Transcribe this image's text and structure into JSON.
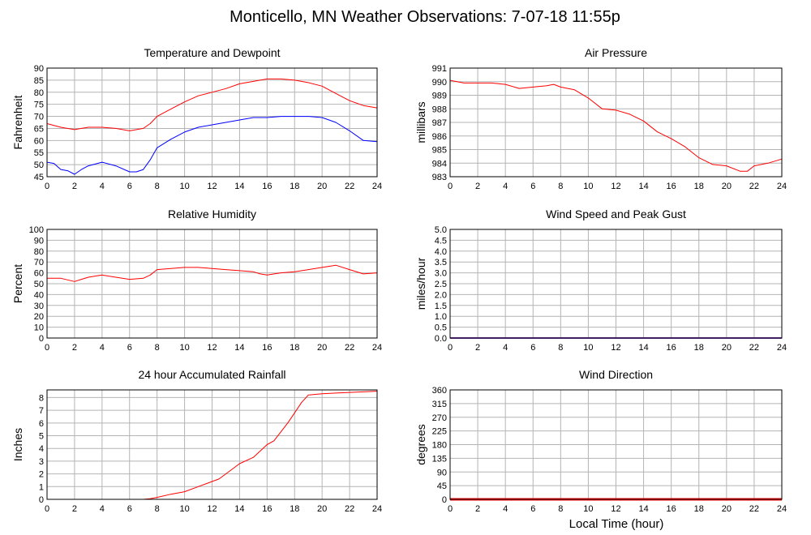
{
  "page": {
    "title": "Monticello, MN Weather Observations: 7-07-18 11:55p",
    "x_axis_label": "Local Time (hour)"
  },
  "colors": {
    "red": "#ff0000",
    "blue": "#0000ff",
    "grid": "#b4b4b4",
    "frame": "#000000"
  },
  "chart_data": [
    {
      "id": "temperature",
      "type": "line",
      "title": "Temperature and Dewpoint",
      "ylabel": "Fahrenheit",
      "xlim": [
        0,
        24
      ],
      "ylim": [
        45,
        90
      ],
      "xticks": [
        0,
        2,
        4,
        6,
        8,
        10,
        12,
        14,
        16,
        18,
        20,
        22,
        24
      ],
      "yticks": [
        45,
        50,
        55,
        60,
        65,
        70,
        75,
        80,
        85,
        90
      ],
      "grid": true,
      "series": [
        {
          "color": "#ff0000",
          "x": [
            0,
            1,
            2,
            2.5,
            3,
            4,
            5,
            6,
            7,
            7.5,
            8,
            9,
            10,
            11,
            12,
            13,
            14,
            15,
            16,
            17,
            18,
            19,
            20,
            21,
            22,
            23,
            24
          ],
          "y": [
            67,
            65.5,
            64.5,
            65,
            65.5,
            65.5,
            65,
            64,
            65,
            67,
            70,
            73,
            76,
            78.5,
            80,
            81.5,
            83.5,
            84.5,
            85.5,
            85.5,
            85,
            84,
            82.5,
            79.5,
            76.5,
            74.5,
            73.5
          ]
        },
        {
          "color": "#0000ff",
          "x": [
            0,
            0.5,
            1,
            1.5,
            2,
            2.5,
            3,
            4,
            5,
            6,
            6.5,
            7,
            7.5,
            8,
            9,
            10,
            11,
            12,
            13,
            14,
            15,
            16,
            17,
            18,
            19,
            20,
            21,
            22,
            23,
            24
          ],
          "y": [
            51,
            50.5,
            48,
            47.5,
            46,
            48,
            49.5,
            51,
            49.5,
            47,
            47,
            48,
            52,
            57,
            60.5,
            63.5,
            65.5,
            66.5,
            67.5,
            68.5,
            69.5,
            69.5,
            70,
            70,
            70,
            69.5,
            67.5,
            64,
            60,
            59.5
          ]
        }
      ]
    },
    {
      "id": "pressure",
      "type": "line",
      "title": "Air Pressure",
      "ylabel": "millibars",
      "xlim": [
        0,
        24
      ],
      "ylim": [
        983,
        991
      ],
      "xticks": [
        0,
        2,
        4,
        6,
        8,
        10,
        12,
        14,
        16,
        18,
        20,
        22,
        24
      ],
      "yticks": [
        983,
        984,
        985,
        986,
        987,
        988,
        989,
        990,
        991
      ],
      "grid": true,
      "series": [
        {
          "color": "#ff0000",
          "x": [
            0,
            1,
            2,
            3,
            4,
            5,
            6,
            7,
            7.5,
            8,
            9,
            10,
            11,
            12,
            13,
            14,
            15,
            16,
            17,
            18,
            19,
            20,
            21,
            21.5,
            22,
            23,
            24
          ],
          "y": [
            990.1,
            989.9,
            989.9,
            989.9,
            989.8,
            989.5,
            989.6,
            989.7,
            989.8,
            989.6,
            989.4,
            988.8,
            988,
            987.9,
            987.6,
            987.1,
            986.3,
            985.8,
            985.2,
            984.4,
            983.9,
            983.8,
            983.4,
            983.4,
            983.8,
            984,
            984.3
          ]
        }
      ]
    },
    {
      "id": "humidity",
      "type": "line",
      "title": "Relative Humidity",
      "ylabel": "Percent",
      "xlim": [
        0,
        24
      ],
      "ylim": [
        0,
        100
      ],
      "xticks": [
        0,
        2,
        4,
        6,
        8,
        10,
        12,
        14,
        16,
        18,
        20,
        22,
        24
      ],
      "yticks": [
        0,
        10,
        20,
        30,
        40,
        50,
        60,
        70,
        80,
        90,
        100
      ],
      "grid": true,
      "series": [
        {
          "color": "#ff0000",
          "x": [
            0,
            1,
            2,
            2.5,
            3,
            4,
            5,
            6,
            7,
            7.5,
            8,
            9,
            10,
            11,
            12,
            13,
            14,
            15,
            15.5,
            16,
            17,
            18,
            19,
            20,
            21,
            22,
            23,
            24
          ],
          "y": [
            55,
            55,
            52,
            54,
            56,
            58,
            56,
            54,
            55,
            58,
            63,
            64,
            65,
            65,
            64,
            63,
            62,
            61,
            59,
            58,
            60,
            61,
            63,
            65,
            67,
            63,
            59,
            60
          ]
        }
      ]
    },
    {
      "id": "wind_speed",
      "type": "line",
      "title": "Wind Speed and Peak Gust",
      "ylabel": "miles/hour",
      "xlim": [
        0,
        24
      ],
      "ylim": [
        0,
        5
      ],
      "xticks": [
        0,
        2,
        4,
        6,
        8,
        10,
        12,
        14,
        16,
        18,
        20,
        22,
        24
      ],
      "yticks": [
        "0.0",
        "0.5",
        "1.0",
        "1.5",
        "2.0",
        "2.5",
        "3.0",
        "3.5",
        "4.0",
        "4.5",
        "5.0"
      ],
      "grid": true,
      "series": [
        {
          "color": "#ff0000",
          "x": [
            0,
            24
          ],
          "y": [
            0,
            0
          ]
        },
        {
          "color": "#0000ff",
          "x": [
            0,
            24
          ],
          "y": [
            0,
            0
          ]
        }
      ]
    },
    {
      "id": "rainfall",
      "type": "line",
      "title": "24 hour Accumulated Rainfall",
      "ylabel": "Inches",
      "xlim": [
        0,
        24
      ],
      "ylim": [
        0,
        8.6
      ],
      "xticks": [
        0,
        2,
        4,
        6,
        8,
        10,
        12,
        14,
        16,
        18,
        20,
        22,
        24
      ],
      "yticks": [
        0,
        1,
        2,
        3,
        4,
        5,
        6,
        7,
        8
      ],
      "grid": true,
      "series": [
        {
          "color": "#ff0000",
          "x": [
            0,
            7,
            7.5,
            8,
            9,
            10,
            11,
            12,
            12.5,
            13,
            14,
            15,
            16,
            16.5,
            17,
            17.5,
            18,
            18.5,
            19,
            20,
            21,
            22,
            23,
            24
          ],
          "y": [
            0,
            0,
            0.05,
            0.15,
            0.4,
            0.6,
            1.0,
            1.4,
            1.6,
            2.0,
            2.8,
            3.3,
            4.3,
            4.6,
            5.3,
            6.0,
            6.8,
            7.6,
            8.2,
            8.3,
            8.35,
            8.4,
            8.45,
            8.5
          ]
        }
      ]
    },
    {
      "id": "wind_direction",
      "type": "line",
      "title": "Wind Direction",
      "ylabel": "degrees",
      "xlim": [
        0,
        24
      ],
      "ylim": [
        0,
        360
      ],
      "xticks": [
        0,
        2,
        4,
        6,
        8,
        10,
        12,
        14,
        16,
        18,
        20,
        22,
        24
      ],
      "yticks": [
        0,
        45,
        90,
        135,
        180,
        225,
        270,
        315,
        360
      ],
      "grid": true,
      "series": [
        {
          "color": "#ff0000",
          "x": [
            0,
            24
          ],
          "y": [
            0,
            0
          ]
        }
      ]
    }
  ]
}
